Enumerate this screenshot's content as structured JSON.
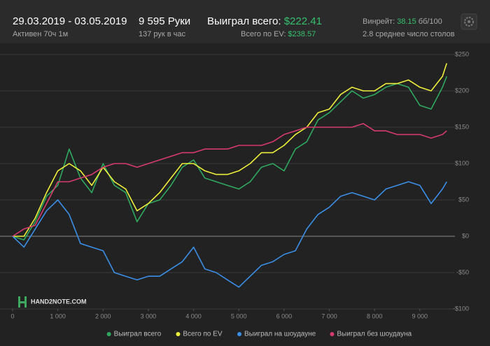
{
  "header": {
    "dates": "29.03.2019 - 03.05.2019",
    "active": "Активен 70ч 1м",
    "hands": "9 595 Руки",
    "hands_per_hour": "137 рук в час",
    "won_label": "Выиграл всего:",
    "won_value": "$222.41",
    "ev_label": "Всего по EV:",
    "ev_value": "$238.57",
    "winrate_label": "Винрейт:",
    "winrate_value": "38.15",
    "winrate_unit": "бб/100",
    "tables": "2.8 среднее число столов",
    "logo": "HAND2NOTE.COM"
  },
  "chart_data": {
    "type": "line",
    "x": [
      0,
      250,
      500,
      750,
      1000,
      1250,
      1500,
      1750,
      2000,
      2250,
      2500,
      2750,
      3000,
      3250,
      3500,
      3750,
      4000,
      4250,
      4500,
      4750,
      5000,
      5250,
      5500,
      5750,
      6000,
      6250,
      6500,
      6750,
      7000,
      7250,
      7500,
      7750,
      8000,
      8250,
      8500,
      8750,
      9000,
      9250,
      9500,
      9595
    ],
    "series": [
      {
        "name": "Выиграл всего",
        "color": "#2fa85f",
        "values": [
          0,
          -5,
          20,
          55,
          70,
          120,
          80,
          60,
          100,
          70,
          60,
          20,
          45,
          50,
          70,
          95,
          105,
          80,
          75,
          70,
          65,
          75,
          95,
          100,
          90,
          120,
          130,
          160,
          170,
          185,
          200,
          190,
          195,
          205,
          210,
          205,
          180,
          175,
          205,
          220
        ]
      },
      {
        "name": "Всего по EV",
        "color": "#eeee3c",
        "values": [
          0,
          0,
          25,
          60,
          90,
          100,
          90,
          70,
          95,
          75,
          65,
          35,
          45,
          60,
          80,
          100,
          100,
          90,
          85,
          85,
          90,
          100,
          115,
          115,
          125,
          140,
          150,
          170,
          175,
          195,
          205,
          200,
          200,
          210,
          210,
          215,
          205,
          200,
          220,
          238
        ]
      },
      {
        "name": "Выиграл на шоудауне",
        "color": "#3a8ee6",
        "values": [
          0,
          -15,
          10,
          35,
          50,
          30,
          -10,
          -15,
          -20,
          -50,
          -55,
          -60,
          -55,
          -55,
          -45,
          -35,
          -15,
          -45,
          -50,
          -60,
          -70,
          -55,
          -40,
          -35,
          -25,
          -20,
          10,
          30,
          40,
          55,
          60,
          55,
          50,
          65,
          70,
          75,
          70,
          45,
          65,
          75
        ]
      },
      {
        "name": "Выиграл без шоудауна",
        "color": "#d63a6e",
        "values": [
          0,
          10,
          15,
          45,
          75,
          75,
          80,
          85,
          95,
          100,
          100,
          95,
          100,
          105,
          110,
          115,
          115,
          120,
          120,
          120,
          125,
          125,
          125,
          130,
          140,
          145,
          150,
          150,
          150,
          150,
          150,
          155,
          145,
          145,
          140,
          140,
          140,
          135,
          140,
          145
        ]
      }
    ],
    "xlim": [
      0,
      9700
    ],
    "ylim": [
      -100,
      250
    ],
    "xticks": [
      0,
      {
        "value": 1000,
        "label": "1 000"
      },
      {
        "value": 2000,
        "label": "2 000"
      },
      {
        "value": 3000,
        "label": "3 000"
      },
      {
        "value": 4000,
        "label": "4 000"
      },
      {
        "value": 5000,
        "label": "5 000"
      },
      {
        "value": 6000,
        "label": "6 000"
      },
      {
        "value": 7000,
        "label": "7 000"
      },
      {
        "value": 8000,
        "label": "8 000"
      },
      {
        "value": 9000,
        "label": "9 000"
      }
    ],
    "yticks": [
      {
        "value": -100,
        "label": "-$100"
      },
      {
        "value": -50,
        "label": "-$50"
      },
      {
        "value": 0,
        "label": "$0"
      },
      {
        "value": 50,
        "label": "$50"
      },
      {
        "value": 100,
        "label": "$100"
      },
      {
        "value": 150,
        "label": "$150"
      },
      {
        "value": 200,
        "label": "$200"
      },
      {
        "value": 250,
        "label": "$250"
      }
    ],
    "grid": true,
    "legend": "bottom"
  }
}
